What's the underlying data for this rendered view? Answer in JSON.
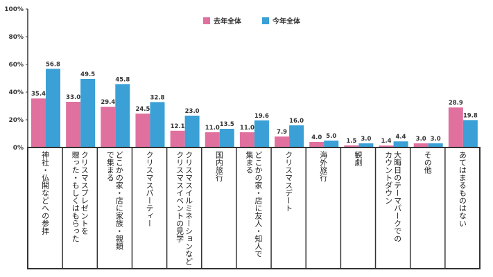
{
  "chart_data": {
    "type": "bar",
    "categories": [
      "神社・仏閣などへの参拝",
      "クリスマスプレゼントを\n贈った・もしくはもらった",
      "どこかの家・店に家族・親類\nで集まる",
      "クリスマスパーティー",
      "クリスマスイルミネーションなど\nクリスマスイベントの見学",
      "国内旅行",
      "どこかの家・店に友人・知人で\n集まる",
      "クリスマスデート",
      "海外旅行",
      "観劇",
      "大晦日のテーマパークでの\nカウントダウン",
      "その他",
      "あてはまるものはない"
    ],
    "series": [
      {
        "name": "去年全体",
        "color": "#e0719f",
        "values": [
          35.4,
          33.0,
          29.4,
          24.5,
          12.1,
          11.0,
          11.0,
          7.9,
          4.0,
          1.5,
          1.4,
          3.0,
          28.9
        ]
      },
      {
        "name": "今年全体",
        "color": "#3aa0d6",
        "values": [
          56.8,
          49.5,
          45.8,
          32.8,
          23.0,
          13.5,
          19.6,
          16.0,
          5.0,
          3.0,
          4.4,
          3.0,
          19.8
        ]
      }
    ],
    "yticks": [
      "0%",
      "20%",
      "40%",
      "60%",
      "80%",
      "100%"
    ],
    "ylim": [
      0,
      100
    ],
    "legend_position": "top",
    "title": "",
    "xlabel": "",
    "ylabel": ""
  }
}
